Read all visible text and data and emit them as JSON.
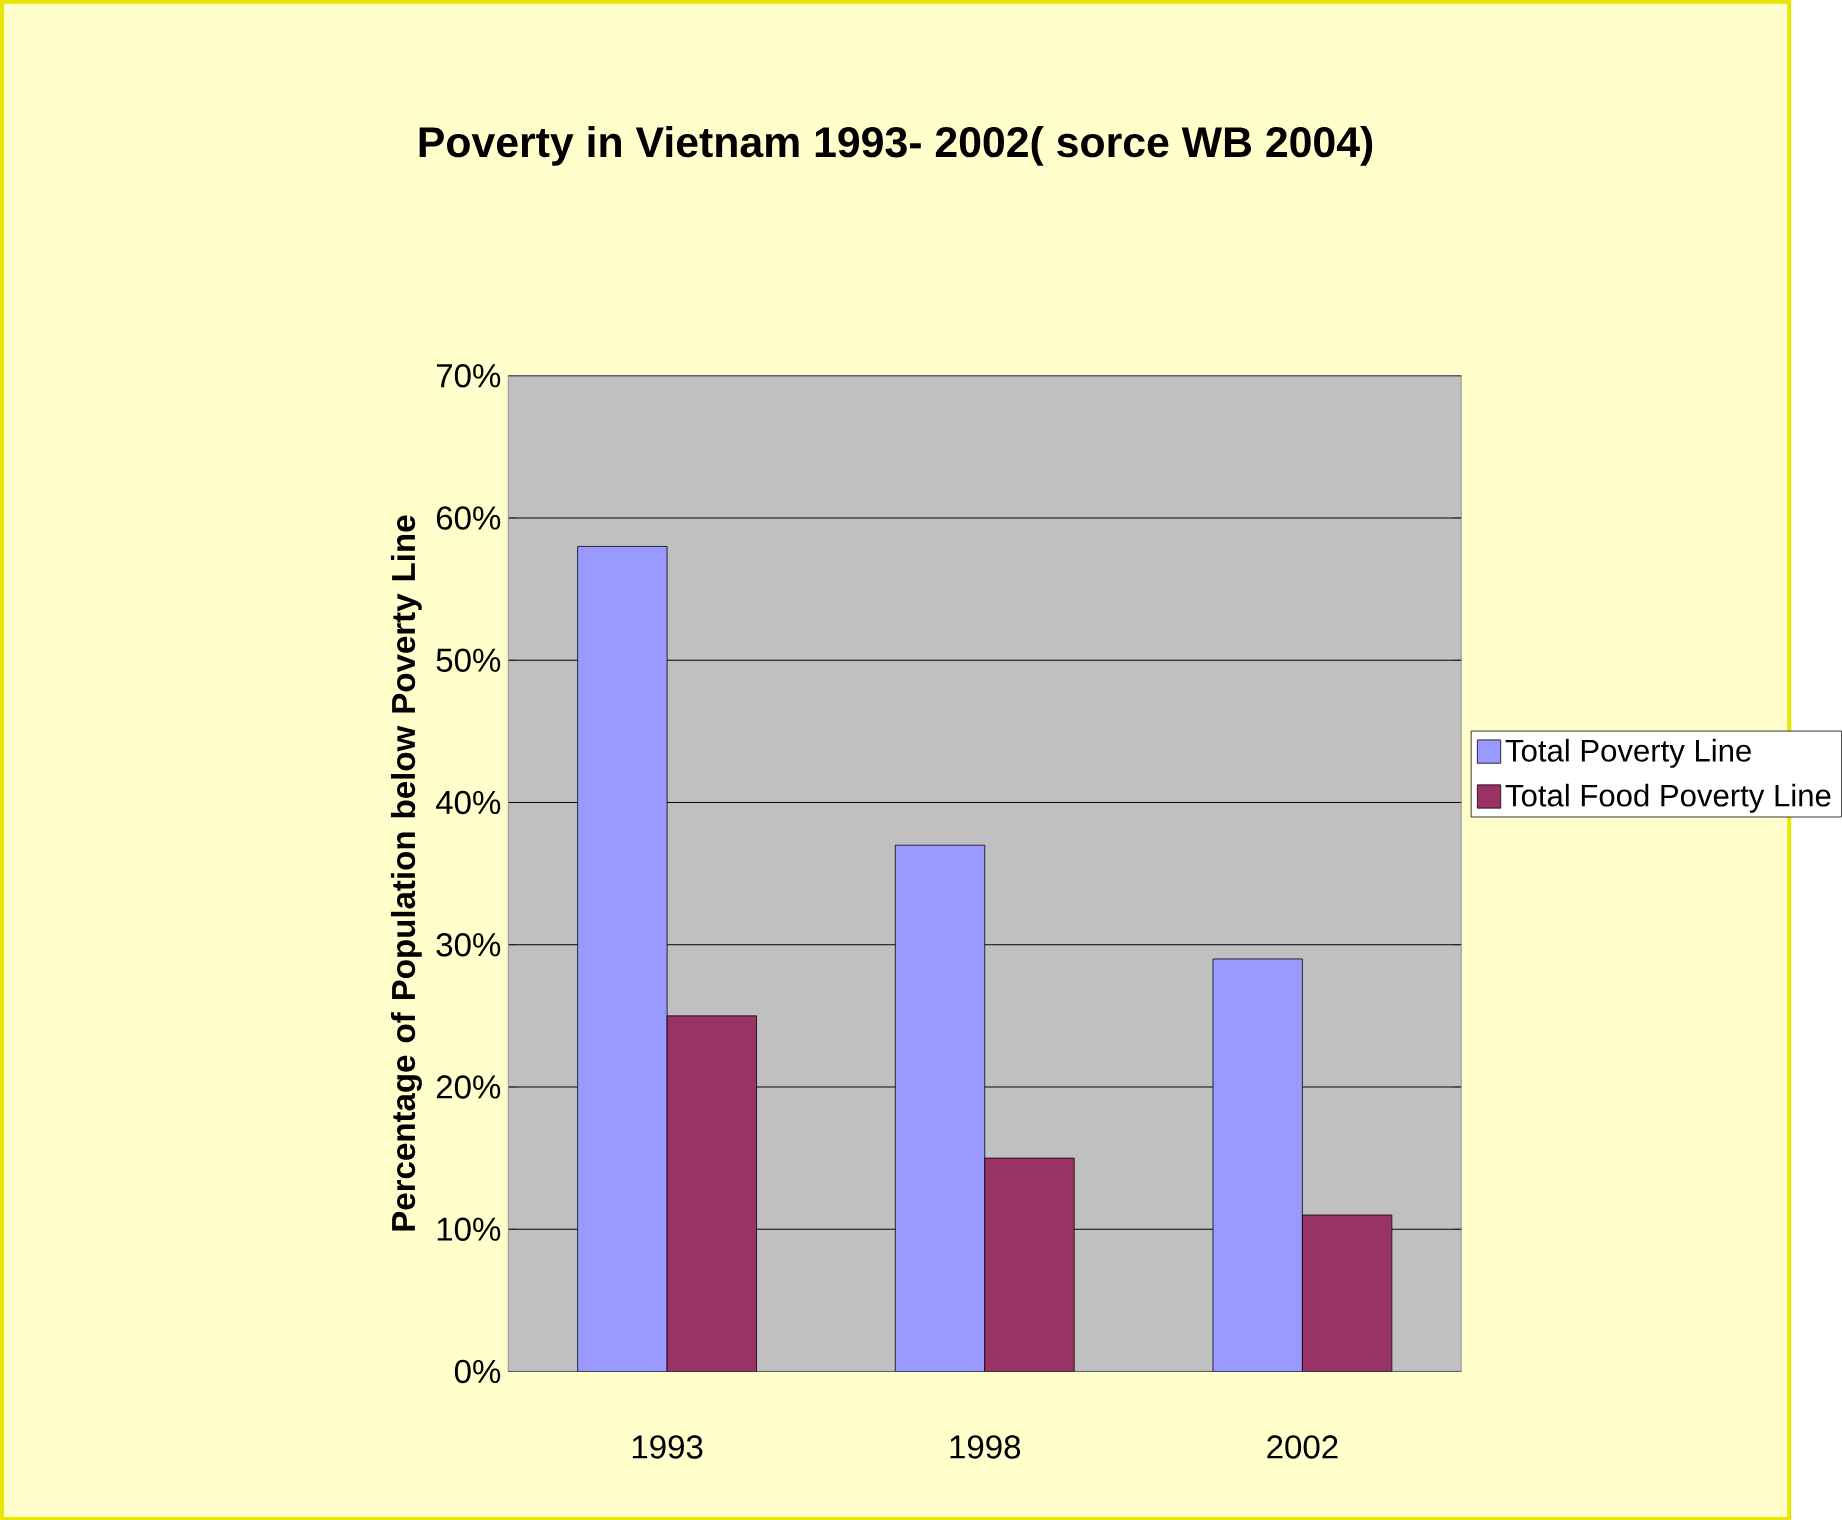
{
  "chart_data": {
    "type": "bar",
    "title": "Poverty in Vietnam 1993- 2002( sorce WB 2004)",
    "ylabel": "Percentage of Population below Poverty Line",
    "categories": [
      "1993",
      "1998",
      "2002"
    ],
    "series": [
      {
        "name": "Total Poverty Line",
        "color": "#9999ff",
        "values": [
          58,
          37,
          29
        ]
      },
      {
        "name": "Total Food Poverty Line",
        "color": "#993366",
        "values": [
          25,
          15,
          11
        ]
      }
    ],
    "ylim": [
      0,
      70
    ],
    "yticks": [
      {
        "value": 0,
        "label": "0%"
      },
      {
        "value": 10,
        "label": "10%"
      },
      {
        "value": 20,
        "label": "20%"
      },
      {
        "value": 30,
        "label": "30%"
      },
      {
        "value": 40,
        "label": "40%"
      },
      {
        "value": 50,
        "label": "50%"
      },
      {
        "value": 60,
        "label": "60%"
      },
      {
        "value": 70,
        "label": "70%"
      }
    ],
    "grid": "y",
    "legend": "right"
  }
}
